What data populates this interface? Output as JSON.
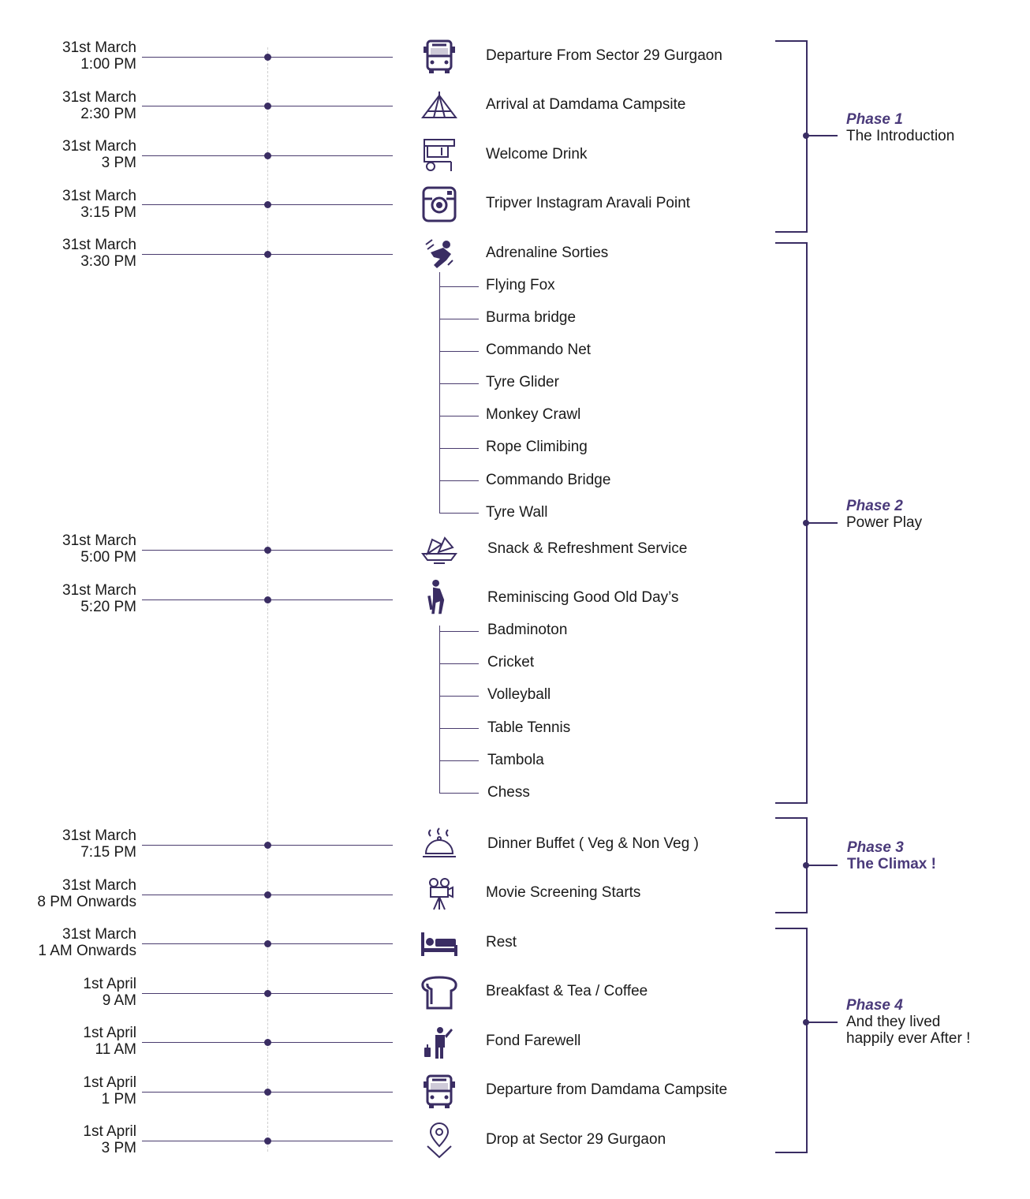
{
  "events": [
    {
      "date": "31st March",
      "time": "1:00 PM",
      "label": "Departure From Sector 29 Gurgaon",
      "icon": "bus-icon"
    },
    {
      "date": "31st March",
      "time": "2:30 PM",
      "label": "Arrival at Damdama Campsite",
      "icon": "tent-icon"
    },
    {
      "date": "31st March",
      "time": "3 PM",
      "label": "Welcome Drink",
      "icon": "drink-cart-icon"
    },
    {
      "date": "31st March",
      "time": "3:15 PM",
      "label": "Tripver Instagram Aravali Point",
      "icon": "instagram-icon"
    },
    {
      "date": "31st March",
      "time": "3:30 PM",
      "label": "Adrenaline Sorties",
      "icon": "skydiver-icon"
    },
    {
      "date": "31st March",
      "time": "5:00 PM",
      "label": "Snack & Refreshment Service",
      "icon": "snack-platter-icon"
    },
    {
      "date": "31st March",
      "time": "5:20 PM",
      "label": "Reminiscing Good Old Day’s",
      "icon": "cricket-player-icon"
    },
    {
      "date": "31st March",
      "time": "7:15 PM",
      "label": "Dinner Buffet ( Veg & Non Veg )",
      "icon": "cloche-icon"
    },
    {
      "date": "31st March",
      "time": "8 PM Onwards",
      "label": "Movie Screening Starts",
      "icon": "movie-projector-icon"
    },
    {
      "date": "31st March",
      "time": "1 AM Onwards",
      "label": "Rest",
      "icon": "bed-icon"
    },
    {
      "date": "1st April",
      "time": "9 AM",
      "label": "Breakfast & Tea / Coffee",
      "icon": "bread-icon"
    },
    {
      "date": "1st April",
      "time": "11 AM",
      "label": "Fond Farewell",
      "icon": "waving-traveler-icon"
    },
    {
      "date": "1st April",
      "time": "1 PM",
      "label": "Departure from Damdama Campsite",
      "icon": "bus-icon"
    },
    {
      "date": "1st April",
      "time": "3 PM",
      "label": "Drop at Sector 29 Gurgaon",
      "icon": "map-pin-icon"
    }
  ],
  "adrenaline_activities": [
    "Flying Fox",
    "Burma bridge",
    "Commando Net",
    "Tyre Glider",
    "Monkey Crawl",
    "Rope Climibing",
    "Commando Bridge",
    "Tyre Wall"
  ],
  "games_activities": [
    "Badminoton",
    "Cricket",
    "Volleyball",
    "Table Tennis",
    "Tambola",
    "Chess"
  ],
  "phases": [
    {
      "title": "Phase 1",
      "desc": "The Introduction"
    },
    {
      "title": "Phase 2",
      "desc": "Power Play"
    },
    {
      "title": "Phase 3",
      "desc": "The Climax !"
    },
    {
      "title": "Phase 4",
      "desc": "And they lived",
      "desc2": "happily ever After !"
    }
  ],
  "colors": {
    "accent": "#3a2d63",
    "line": "#4a3c6e",
    "text": "#1a1a1a"
  }
}
